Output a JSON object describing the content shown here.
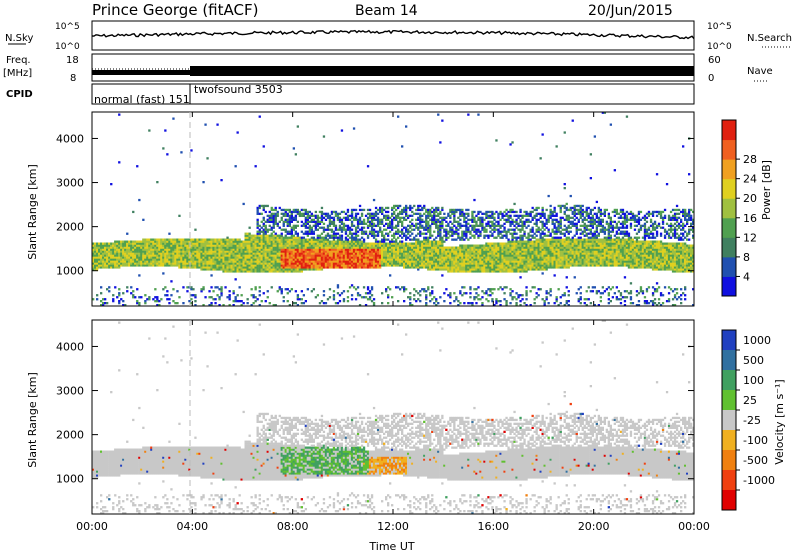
{
  "header": {
    "station": "Prince George (fitACF)",
    "beam": "Beam 14",
    "date": "20/Jun/2015"
  },
  "noise_panel": {
    "left_label": "N.Sky",
    "right_label": "N.Search",
    "left_ticks": [
      "10^5",
      "10^0"
    ],
    "right_ticks": [
      "10^5",
      "10^0"
    ]
  },
  "freq_panel": {
    "left_label_1": "Freq.",
    "left_label_2": "[MHz]",
    "right_label": "Nave",
    "left_ticks": [
      "18",
      "8"
    ],
    "right_ticks": [
      "60",
      "0"
    ]
  },
  "cpid_panel": {
    "label": "CPID",
    "mode_1": "normal (fast) 151",
    "mode_2": "twofsound 3503"
  },
  "x_axis": {
    "label": "Time UT",
    "ticks": [
      "00:00",
      "04:00",
      "08:00",
      "12:00",
      "16:00",
      "20:00",
      "00:00"
    ]
  },
  "power_panel": {
    "y_label": "Slant Range [km]",
    "y_ticks": [
      "1000",
      "2000",
      "3000",
      "4000"
    ],
    "colorbar_label": "Power [dB]",
    "colorbar_ticks": [
      "4",
      "8",
      "12",
      "16",
      "20",
      "24",
      "28"
    ],
    "colors": [
      "#1010e0",
      "#2050b0",
      "#408060",
      "#50a050",
      "#a0c040",
      "#e0d020",
      "#f0a020",
      "#f06020",
      "#e02010"
    ]
  },
  "velocity_panel": {
    "y_label": "Slant Range [km]",
    "y_ticks": [
      "1000",
      "2000",
      "3000",
      "4000"
    ],
    "colorbar_label": "Velocity [m s⁻¹]",
    "colorbar_ticks": [
      "1000",
      "500",
      "100",
      "25",
      "-25",
      "-100",
      "-500",
      "-1000"
    ],
    "colors": [
      "#2040c0",
      "#3070a0",
      "#40a060",
      "#60c030",
      "#c8c8c8",
      "#f0b020",
      "#f08010",
      "#f04010",
      "#e00000"
    ]
  },
  "chart_data": {
    "type": "heatmap",
    "x_range_hours": [
      0,
      24
    ],
    "y_range_km": [
      200,
      4600
    ],
    "mode_change_hour": 3.95,
    "bands": [
      {
        "name": "main-echo",
        "start_hour": 0,
        "end_hour": 24,
        "range_km": [
          1000,
          1600
        ]
      },
      {
        "name": "upper-echo",
        "start_hour": 6.5,
        "end_hour": 24,
        "range_km": [
          1600,
          2500
        ]
      },
      {
        "name": "intense-echo",
        "start_hour": 7.5,
        "end_hour": 11.5,
        "range_km": [
          1050,
          1500
        ]
      }
    ],
    "power_peak_db": 28,
    "velocity_range": [
      -1000,
      1000
    ]
  }
}
